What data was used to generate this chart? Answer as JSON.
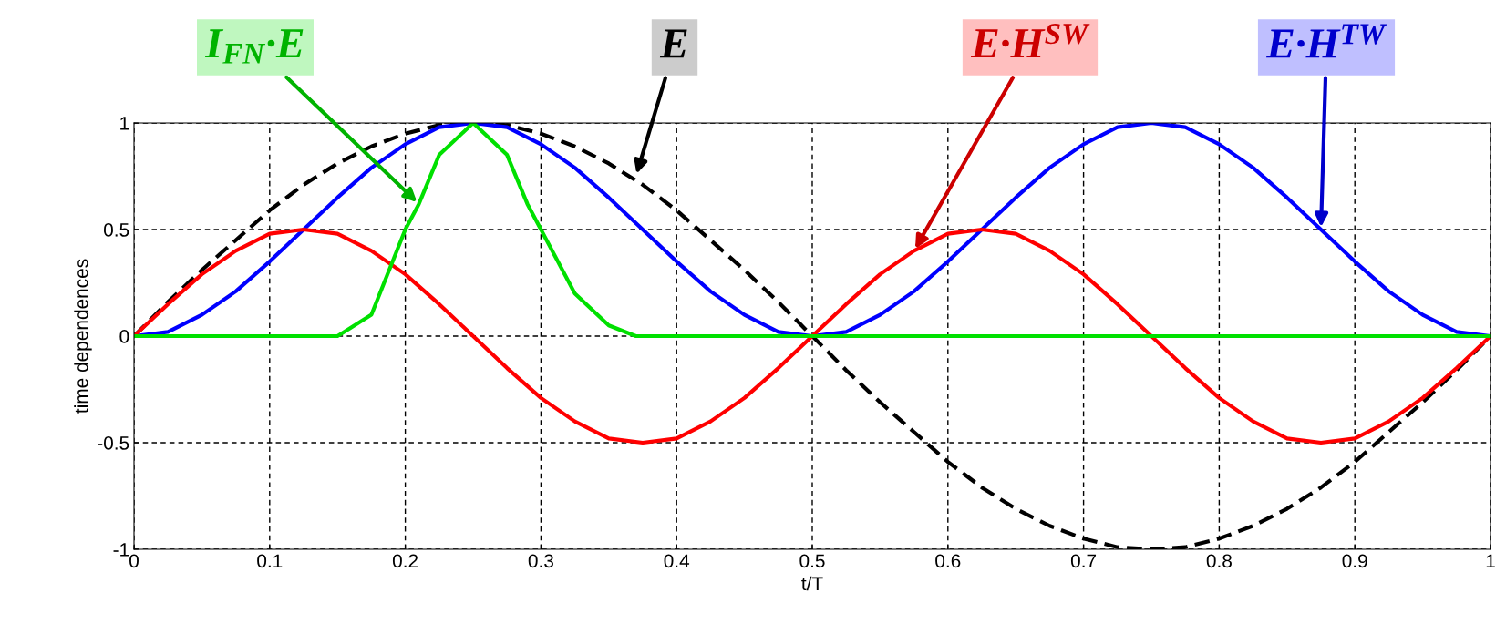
{
  "chart_data": {
    "type": "line",
    "xlabel": "t/T",
    "ylabel": "time dependences",
    "x": [
      0,
      0.025,
      0.05,
      0.075,
      0.1,
      0.125,
      0.15,
      0.175,
      0.2,
      0.225,
      0.25,
      0.275,
      0.3,
      0.325,
      0.35,
      0.375,
      0.4,
      0.425,
      0.45,
      0.475,
      0.5,
      0.525,
      0.55,
      0.575,
      0.6,
      0.625,
      0.65,
      0.675,
      0.7,
      0.725,
      0.75,
      0.775,
      0.8,
      0.825,
      0.85,
      0.875,
      0.9,
      0.925,
      0.95,
      0.975,
      1
    ],
    "series": [
      {
        "color": "#000000",
        "line_style": "dashed",
        "values": [
          0,
          0.16,
          0.31,
          0.45,
          0.59,
          0.71,
          0.81,
          0.89,
          0.95,
          0.99,
          1,
          0.99,
          0.95,
          0.89,
          0.81,
          0.71,
          0.59,
          0.45,
          0.31,
          0.16,
          0,
          -0.16,
          -0.31,
          -0.45,
          -0.59,
          -0.71,
          -0.81,
          -0.89,
          -0.95,
          -0.99,
          -1,
          -0.99,
          -0.95,
          -0.89,
          -0.81,
          -0.71,
          -0.59,
          -0.45,
          -0.31,
          -0.16,
          0
        ]
      },
      {
        "color": "#0000ff",
        "values": [
          0,
          0.02,
          0.1,
          0.21,
          0.35,
          0.5,
          0.65,
          0.79,
          0.9,
          0.98,
          1,
          0.98,
          0.9,
          0.79,
          0.65,
          0.5,
          0.35,
          0.21,
          0.1,
          0.02,
          0,
          0.02,
          0.1,
          0.21,
          0.35,
          0.5,
          0.65,
          0.79,
          0.9,
          0.98,
          1,
          0.98,
          0.9,
          0.79,
          0.65,
          0.5,
          0.35,
          0.21,
          0.1,
          0.02,
          0
        ]
      },
      {
        "color": "#ff0000",
        "values": [
          0,
          0.15,
          0.29,
          0.4,
          0.48,
          0.5,
          0.48,
          0.4,
          0.29,
          0.15,
          0,
          -0.15,
          -0.29,
          -0.4,
          -0.48,
          -0.5,
          -0.48,
          -0.4,
          -0.29,
          -0.15,
          0,
          0.15,
          0.29,
          0.4,
          0.48,
          0.5,
          0.48,
          0.4,
          0.29,
          0.15,
          0,
          -0.15,
          -0.29,
          -0.4,
          -0.48,
          -0.5,
          -0.48,
          -0.4,
          -0.29,
          -0.15,
          0
        ]
      },
      {
        "color": "#00e000",
        "x": [
          0,
          0.15,
          0.175,
          0.2,
          0.21,
          0.225,
          0.25,
          0.275,
          0.29,
          0.3,
          0.325,
          0.35,
          0.37,
          1
        ],
        "values": [
          0,
          0,
          0.1,
          0.5,
          0.62,
          0.85,
          1,
          0.85,
          0.62,
          0.5,
          0.2,
          0.05,
          0,
          0
        ]
      }
    ],
    "annotations": [
      {
        "text": "E",
        "x": 0.37,
        "y": 0.75
      },
      {
        "text": "E·H$^{TW}$",
        "x": 0.875,
        "y": 0.5
      },
      {
        "text": "E·H$^{SW}$",
        "x": 0.575,
        "y": 0.4
      },
      {
        "text": "I$_{FN}$·E",
        "x": 0.21,
        "y": 0.62
      }
    ],
    "xlim": [
      0,
      1
    ],
    "ylim": [
      -1,
      1
    ],
    "xticks": [
      0,
      0.1,
      0.2,
      0.3,
      0.4,
      0.5,
      0.6,
      0.7,
      0.8,
      0.9,
      1
    ],
    "yticks": [
      -1,
      -0.5,
      0,
      0.5,
      1
    ],
    "grid": true
  }
}
